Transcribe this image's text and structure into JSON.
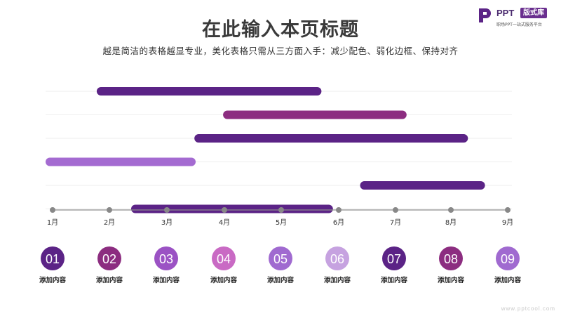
{
  "header": {
    "title": "在此输入本页标题",
    "subtitle": "越是简洁的表格越显专业，美化表格只需从三方面入手：减少配色、弱化边框、保持对齐"
  },
  "logo": {
    "brand": "PPT",
    "badge": "版式库",
    "tagline": "职场PPT一站式服务平台",
    "icon": "ppt-logo-icon"
  },
  "watermark": "www.pptcool.com",
  "colors": {
    "deep_purple": "#5b2386",
    "magenta": "#8c2d80",
    "violet": "#7b3fa8",
    "orchid": "#c96ac4",
    "light_violet": "#b089d8",
    "lavender": "#c6a2e0",
    "grape": "#6f2f93",
    "medium_violet": "#a06ad0",
    "axis": "#8c8c8c",
    "grid": "#eeeeee"
  },
  "chart_data": {
    "type": "bar",
    "orientation": "horizontal-gantt",
    "x_ticks": [
      "1月",
      "2月",
      "3月",
      "4月",
      "5月",
      "6月",
      "7月",
      "8月",
      "9月"
    ],
    "xlim": [
      1,
      9
    ],
    "grid": true,
    "tasks": [
      {
        "start": 1.9,
        "end": 5.7,
        "color": "#5b2386"
      },
      {
        "start": 4.1,
        "end": 7.2,
        "color": "#8c2d80"
      },
      {
        "start": 3.6,
        "end": 8.3,
        "color": "#5b2386"
      },
      {
        "start": 1.0,
        "end": 3.5,
        "color": "#a46bd1"
      },
      {
        "start": 6.5,
        "end": 8.6,
        "color": "#5b2386"
      },
      {
        "start": 2.5,
        "end": 5.9,
        "color": "#5b2386"
      }
    ],
    "items": [
      {
        "number": "01",
        "label": "添加内容",
        "color": "#5b2386"
      },
      {
        "number": "02",
        "label": "添加内容",
        "color": "#8c2d80"
      },
      {
        "number": "03",
        "label": "添加内容",
        "color": "#9b52c4"
      },
      {
        "number": "04",
        "label": "添加内容",
        "color": "#c96ac4"
      },
      {
        "number": "05",
        "label": "添加内容",
        "color": "#a06ad0"
      },
      {
        "number": "06",
        "label": "添加内容",
        "color": "#c6a2e0"
      },
      {
        "number": "07",
        "label": "添加内容",
        "color": "#5b2386"
      },
      {
        "number": "08",
        "label": "添加内容",
        "color": "#8c2d80"
      },
      {
        "number": "09",
        "label": "添加内容",
        "color": "#a06ad0"
      }
    ]
  }
}
